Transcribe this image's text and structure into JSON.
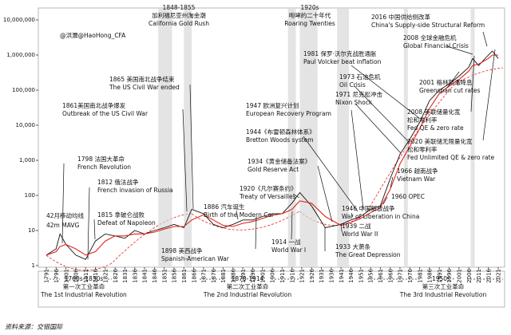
{
  "chart_data": {
    "type": "line",
    "log_scale": true,
    "ylim": [
      1,
      10000000
    ],
    "yticks": [
      1,
      10,
      100,
      {
        "value": 1000,
        "label": "1,000"
      },
      {
        "value": 10000,
        "label": "10,000"
      },
      {
        "value": 100000,
        "label": "100,000"
      },
      {
        "value": 1000000,
        "label": "1,000,000"
      },
      {
        "value": 10000000,
        "label": "10,000,000"
      }
    ],
    "xlim": [
      1791,
      2024
    ],
    "xticks": [
      1791,
      1796,
      1801,
      1806,
      1811,
      1816,
      1821,
      1826,
      1831,
      1836,
      1841,
      1846,
      1851,
      1856,
      1861,
      1866,
      1871,
      1876,
      1881,
      1886,
      1891,
      1896,
      1901,
      1906,
      1911,
      1916,
      1921,
      1926,
      1931,
      1936,
      1941,
      1946,
      1951,
      1956,
      1961,
      1966,
      1971,
      1976,
      1981,
      1986,
      1991,
      1996,
      2001,
      2006,
      2011,
      2016,
      2021
    ],
    "x": [
      1791,
      1796,
      1798,
      1801,
      1806,
      1811,
      1816,
      1821,
      1826,
      1831,
      1836,
      1841,
      1846,
      1851,
      1856,
      1861,
      1865,
      1871,
      1876,
      1881,
      1886,
      1891,
      1896,
      1901,
      1906,
      1911,
      1916,
      1920,
      1926,
      1933,
      1941,
      1946,
      1951,
      1956,
      1961,
      1966,
      1971,
      1976,
      1981,
      1986,
      1991,
      1996,
      2001,
      2006,
      2008,
      2011,
      2016,
      2018,
      2021
    ],
    "series": [
      {
        "color": "#111111",
        "values": [
          2,
          3,
          8,
          4,
          2,
          1.5,
          5,
          8,
          7,
          6,
          10,
          8,
          10,
          12,
          15,
          12,
          40,
          30,
          15,
          12,
          15,
          20,
          20,
          25,
          30,
          30,
          60,
          120,
          50,
          12,
          15,
          20,
          25,
          40,
          50,
          300,
          1500,
          4000,
          12000,
          50000,
          100000,
          150000,
          250000,
          450000,
          800000,
          500000,
          1000000,
          1300000,
          800000
        ]
      },
      {
        "name": "42月移动均线",
        "name_en": "42m MAVG",
        "color": "#e8221b",
        "values": [
          2,
          2.5,
          3.5,
          4,
          3,
          2,
          2.5,
          5,
          7,
          7,
          8,
          8,
          9,
          11,
          13,
          13,
          20,
          28,
          20,
          14,
          13,
          16,
          18,
          22,
          27,
          30,
          40,
          70,
          60,
          25,
          14,
          17,
          22,
          32,
          45,
          150,
          800,
          2500,
          8000,
          30000,
          80000,
          130000,
          200000,
          350000,
          500000,
          550000,
          800000,
          1000000,
          1000000
        ]
      }
    ],
    "shaded": [
      [
        1848,
        1855
      ],
      [
        1861,
        1865
      ],
      [
        1914,
        1918
      ],
      [
        1920,
        1929
      ],
      [
        1939,
        1945
      ],
      [
        1973,
        1975
      ],
      [
        2007,
        2009
      ]
    ],
    "annotations": [
      {
        "lines": [
          "1848-1855",
          "加利福尼亚州淘金潮",
          "California Gold Rush"
        ]
      },
      {
        "lines": [
          "1920s",
          "咆哮的二十年代",
          "Roaring Twenties"
        ]
      },
      {
        "lines": [
          "2016 中国供给侧改革",
          "China's Supply-side Structural Reform"
        ]
      },
      {
        "lines": [
          "2008 全球金融危机",
          "Global Financial Crisis"
        ]
      },
      {
        "lines": [
          "1981 保罗·沃尔克战胜通胀",
          "Paul Volcker beat inflation"
        ]
      },
      {
        "lines": [
          "1973 石油危机",
          "Oil Crisis"
        ]
      },
      {
        "lines": [
          "1971 尼克松冲击",
          "Nixon Shock"
        ]
      },
      {
        "lines": [
          "2001 格林斯潘降息",
          "Greenspan cut rates"
        ]
      },
      {
        "lines": [
          "2008 美联储量化宽",
          "松和零利率",
          "Fed QE & zero rate"
        ]
      },
      {
        "lines": [
          "2020 美联储无限量化宽",
          "松和零利率",
          "Fed Unlimited QE & zero rate"
        ]
      },
      {
        "lines": [
          "1865 美国南北战争结束",
          "The US Civil War ended"
        ]
      },
      {
        "lines": [
          "1861美国南北战争爆发",
          "Outbreak of the US Civil War"
        ]
      },
      {
        "lines": [
          "1947 欧洲复兴计划",
          "European Recovery Program"
        ]
      },
      {
        "lines": [
          "1944《布雷顿森林体系》",
          "Bretton Woods system"
        ]
      },
      {
        "lines": [
          "1934《黄金储备法案》",
          "Gold Reserve Act"
        ]
      },
      {
        "lines": [
          "1798 法国大革命",
          "French Revolution"
        ]
      },
      {
        "lines": [
          "1812 俄法战争",
          "French invasion of Russia"
        ]
      },
      {
        "lines": [
          "1920《凡尔赛条约》",
          "Treaty of Versailles"
        ]
      },
      {
        "lines": [
          "1886 汽车诞生",
          "Birth of the Modern Car"
        ]
      },
      {
        "lines": [
          "1815 拿破仑战败",
          "Defeat of Napoleon"
        ]
      },
      {
        "lines": [
          "1898 美西战争",
          "Spanish-American War"
        ]
      },
      {
        "lines": [
          "1914 一战",
          "World War I"
        ]
      },
      {
        "lines": [
          "1933 大萧条",
          "The Great Depression"
        ]
      },
      {
        "lines": [
          "1939 二战",
          "World War II"
        ]
      },
      {
        "lines": [
          "1946 中国解放战争",
          "War of Liberation in China"
        ]
      },
      {
        "lines": [
          "1960 OPEC"
        ]
      },
      {
        "lines": [
          "1966 越南战争",
          "Vietnam War"
        ]
      },
      {
        "lines": [
          "@洪灝@HaoHong_CFA"
        ]
      }
    ],
    "revolutions": [
      {
        "lines": [
          "1760s-1830s",
          "第一次工业革命",
          "The 1st Industrial Revolution"
        ]
      },
      {
        "lines": [
          "1870-1914",
          "第二次工业革命",
          "The 2nd Industrial Revolution"
        ]
      },
      {
        "lines": [
          "1950s -",
          "第三次工业革命",
          "The 3rd Industrial Revolution"
        ]
      }
    ],
    "source": "资料来源：交银国际"
  }
}
